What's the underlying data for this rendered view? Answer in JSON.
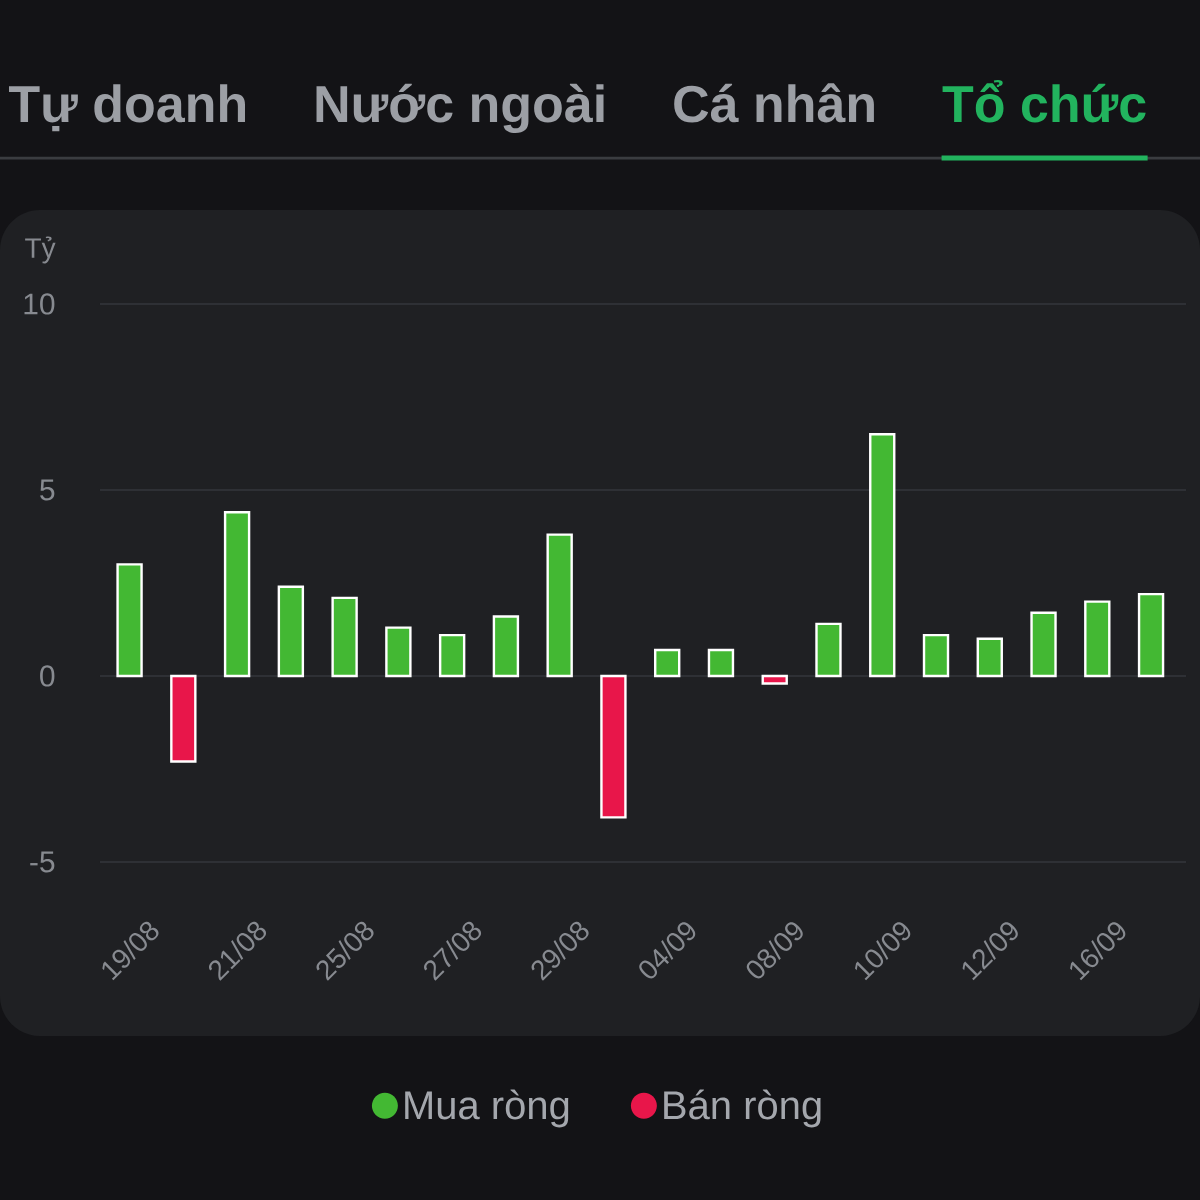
{
  "chart_data": {
    "type": "bar",
    "title": "Tổ chức",
    "annotations": [
      "Tự doanh",
      "Nước ngoài",
      "Cá nhân"
    ],
    "ylabel": "Tỷ",
    "categories": [
      "19/08",
      null,
      "21/08",
      null,
      "25/08",
      null,
      "27/08",
      null,
      "29/08",
      null,
      "04/09",
      null,
      "08/09",
      null,
      "10/09",
      null,
      "12/09",
      null,
      "16/09",
      null
    ],
    "series": [
      {
        "name": "Mua ròng",
        "color": "#43b833",
        "values": [
          3.0,
          null,
          4.4,
          2.4,
          2.1,
          1.3,
          1.1,
          1.6,
          3.8,
          null,
          0.7,
          0.7,
          null,
          1.4,
          6.5,
          1.1,
          1.0,
          1.7,
          2.0,
          2.2
        ]
      },
      {
        "name": "Bán ròng",
        "color": "#e8164a",
        "values": [
          null,
          -2.3,
          null,
          null,
          null,
          null,
          null,
          null,
          null,
          -3.8,
          null,
          null,
          -0.2,
          null,
          null,
          null,
          null,
          null,
          null,
          null
        ]
      }
    ],
    "ylim": [
      -5,
      10
    ],
    "yticks": [
      -5,
      0,
      5,
      10
    ],
    "grid": "y",
    "legend": "bottom"
  }
}
